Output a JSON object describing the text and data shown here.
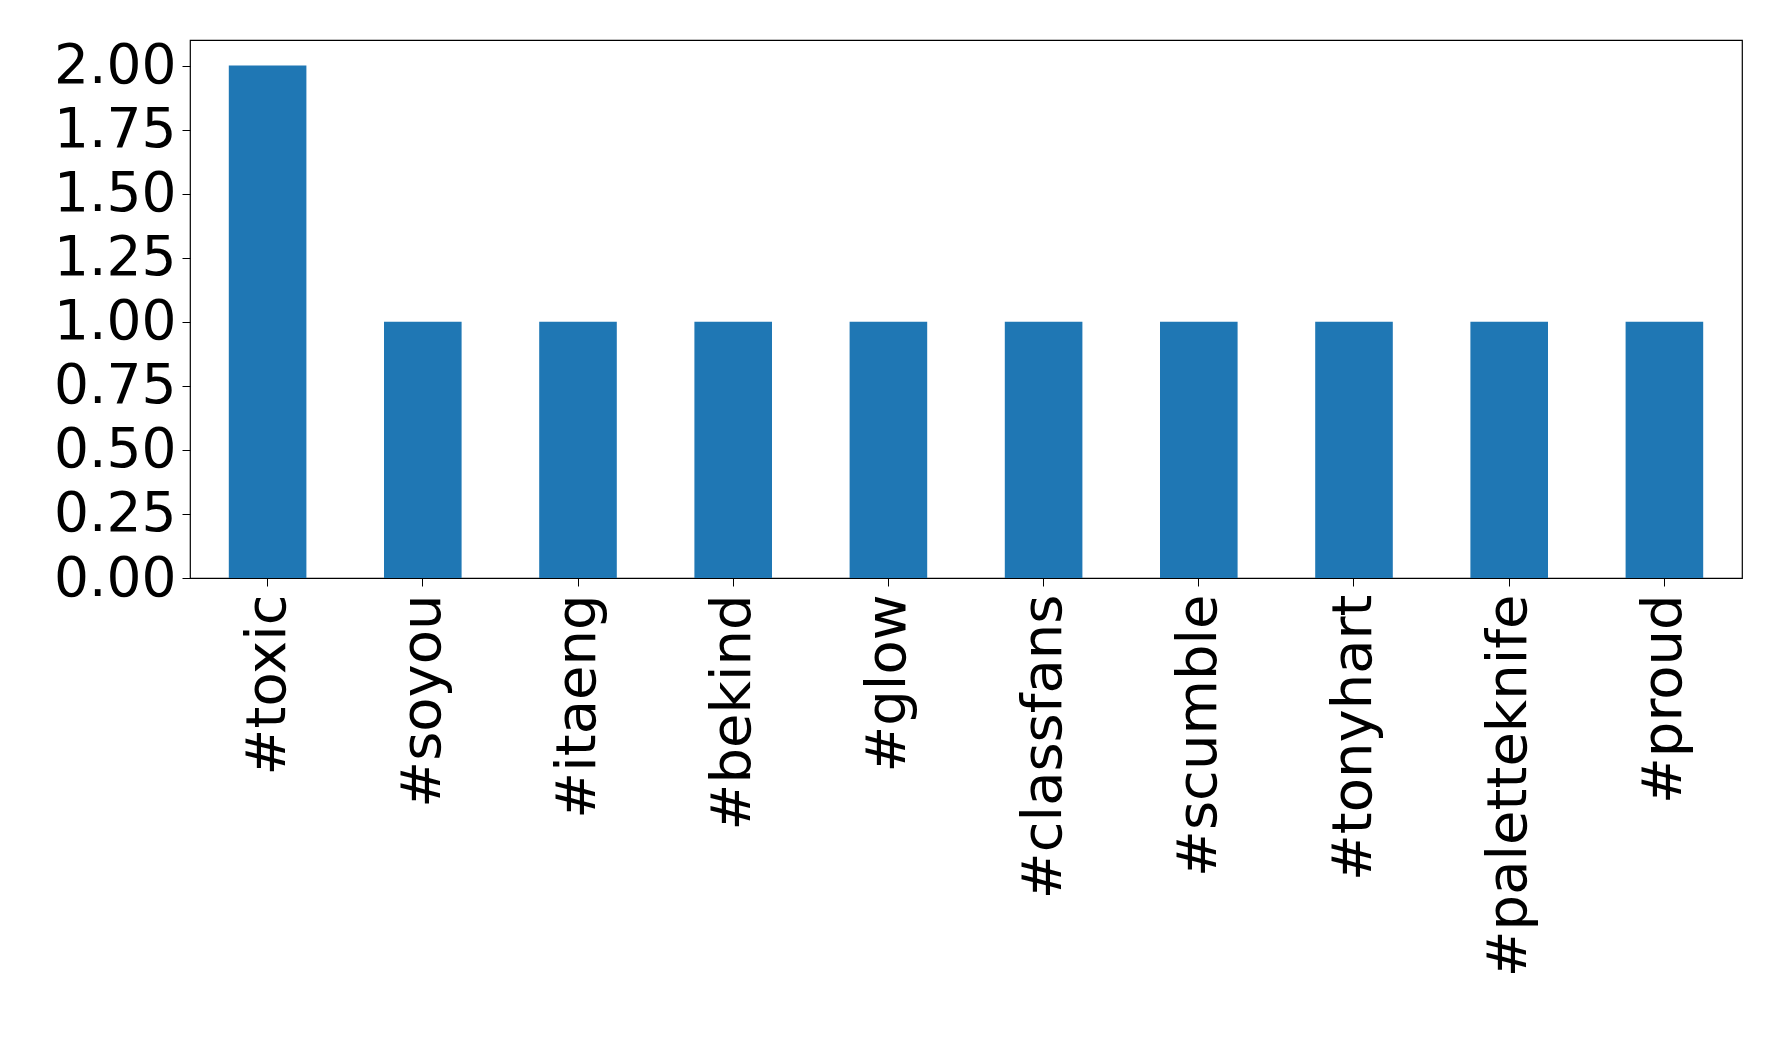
{
  "chart_data": {
    "type": "bar",
    "categories": [
      "#toxic",
      "#soyou",
      "#itaeng",
      "#bekind",
      "#glow",
      "#classfans",
      "#scumble",
      "#tonyhart",
      "#paletteknife",
      "#proud"
    ],
    "values": [
      2,
      1,
      1,
      1,
      1,
      1,
      1,
      1,
      1,
      1
    ],
    "color": "#1f77b4",
    "ylim": [
      0,
      2.1
    ],
    "yticks": [
      {
        "value": 0,
        "label": "0.00"
      },
      {
        "value": 0.25,
        "label": "0.25"
      },
      {
        "value": 0.5,
        "label": "0.50"
      },
      {
        "value": 0.75,
        "label": "0.75"
      },
      {
        "value": 1,
        "label": "1.00"
      },
      {
        "value": 1.25,
        "label": "1.25"
      },
      {
        "value": 1.5,
        "label": "1.50"
      },
      {
        "value": 1.75,
        "label": "1.75"
      },
      {
        "value": 2,
        "label": "2.00"
      }
    ],
    "grid": false
  }
}
